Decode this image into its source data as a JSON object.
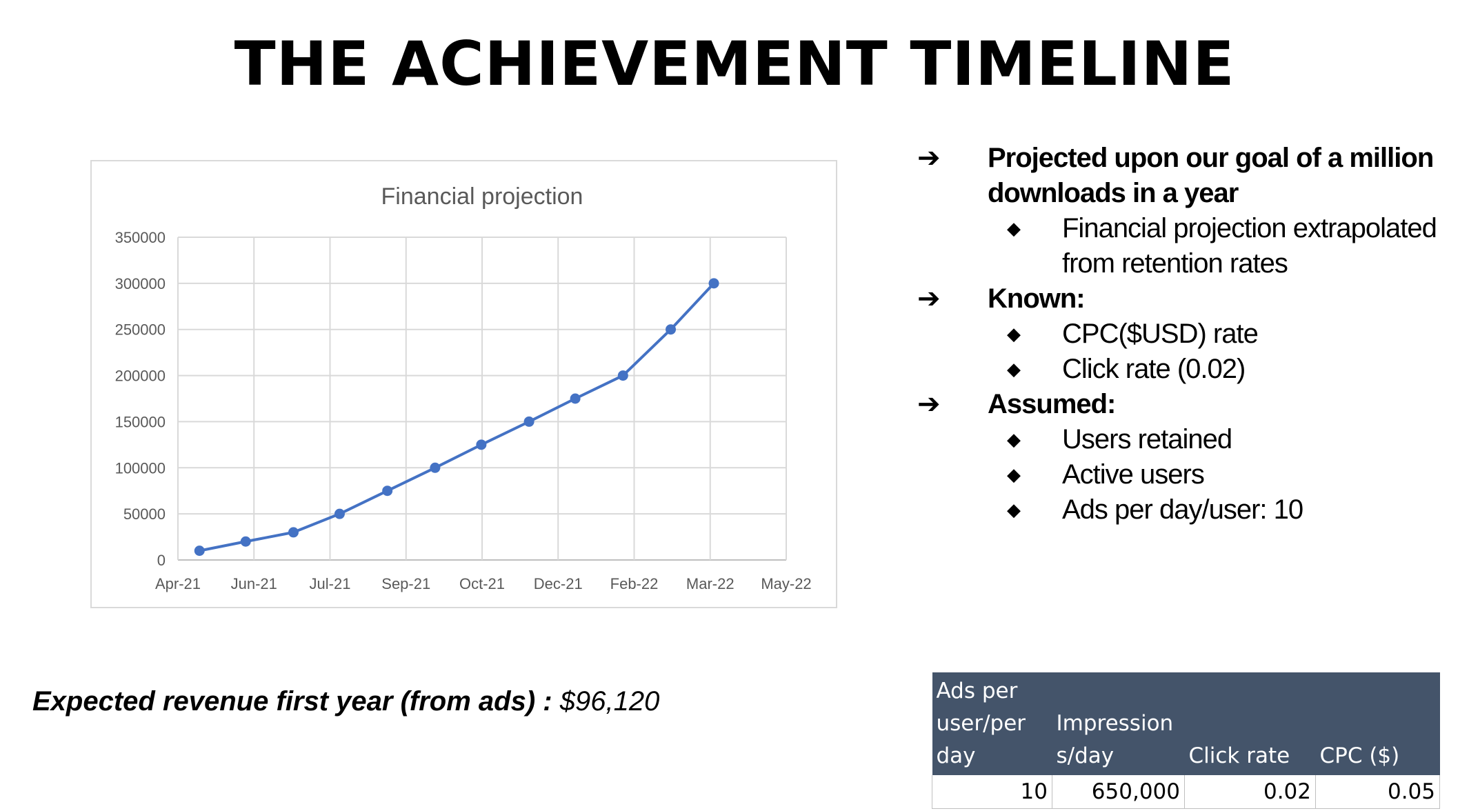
{
  "page": {
    "title": "THE ACHIEVEMENT TIMELINE"
  },
  "chart_data": {
    "type": "line",
    "title": "Financial projection",
    "xlabel": "",
    "ylabel": "",
    "x_tick_labels": [
      "Apr-21",
      "Jun-21",
      "Jul-21",
      "Sep-21",
      "Oct-21",
      "Dec-21",
      "Feb-22",
      "Mar-22",
      "May-22"
    ],
    "y_tick_labels": [
      "0",
      "50000",
      "100000",
      "150000",
      "200000",
      "250000",
      "300000",
      "350000"
    ],
    "ylim": [
      0,
      350000
    ],
    "xlim": [
      "2021-04-01",
      "2022-05-01"
    ],
    "grid": true,
    "legend": "none",
    "series_color": "#4472c4",
    "series": [
      {
        "x": [
          "2021-04-15",
          "2021-05-15",
          "2021-06-15",
          "2021-07-15",
          "2021-08-15",
          "2021-09-15",
          "2021-10-15",
          "2021-11-15",
          "2021-12-15",
          "2022-01-15",
          "2022-02-15",
          "2022-03-15"
        ],
        "values": [
          10000,
          20000,
          30000,
          50000,
          75000,
          100000,
          125000,
          150000,
          175000,
          200000,
          250000,
          300000
        ]
      }
    ]
  },
  "bullets": [
    {
      "text": "Projected upon our goal of a million downloads in a year",
      "sub": [
        "Financial projection extrapolated from retention rates"
      ]
    },
    {
      "text": "Known:",
      "sub": [
        "CPC($USD) rate",
        "Click rate (0.02)"
      ]
    },
    {
      "text": "Assumed:",
      "sub": [
        "Users retained",
        "Active users",
        "Ads per day/user: 10"
      ]
    }
  ],
  "revenue": {
    "label": "Expected revenue first year (from ads) :",
    "value": "$96,120"
  },
  "table": {
    "header_color": "#44546a",
    "headers": [
      "Ads per user/per day",
      "Impression s/day",
      "Click rate",
      "CPC ($)"
    ],
    "rows": [
      [
        "10",
        "650,000",
        "0.02",
        "0.05"
      ]
    ]
  }
}
